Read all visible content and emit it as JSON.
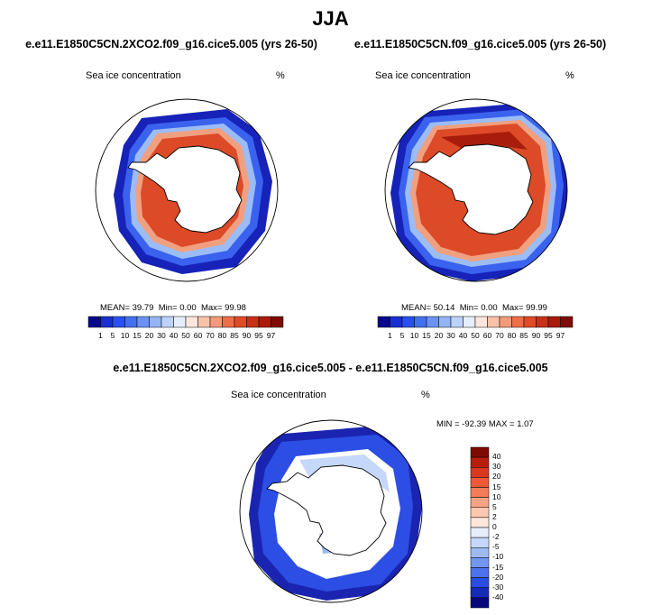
{
  "title": "JJA",
  "panels": [
    {
      "id": "left",
      "title": "e.e11.E1850C5CN.2XCO2.f09_g16.cice5.005 (yrs 26-50)",
      "field_label": "Sea ice concentration",
      "units": "%",
      "stats": {
        "mean_label": "MEAN=",
        "mean": "39.79",
        "min_label": "Min=",
        "min": "0.00",
        "max_label": "Max=",
        "max": "99.98"
      }
    },
    {
      "id": "right",
      "title": "e.e11.E1850C5CN.f09_g16.cice5.005 (yrs 26-50)",
      "field_label": "Sea ice concentration",
      "units": "%",
      "stats": {
        "mean_label": "MEAN=",
        "mean": "50.14",
        "min_label": "Min=",
        "min": "0.00",
        "max_label": "Max=",
        "max": "99.99"
      }
    }
  ],
  "diff_panel": {
    "title": "e.e11.E1850C5CN.2XCO2.f09_g16.cice5.005 - e.e11.E1850C5CN.f09_g16.cice5.005",
    "field_label": "Sea ice concentration",
    "units": "%",
    "minmax_text": "MIN = -92.39 MAX =  1.07"
  },
  "concentration_colorbar": {
    "labels": [
      "1",
      "5",
      "10",
      "15",
      "20",
      "30",
      "40",
      "50",
      "60",
      "70",
      "80",
      "85",
      "90",
      "95",
      "97"
    ],
    "colors": [
      "#08088c",
      "#1a2fd0",
      "#2850ee",
      "#4470f0",
      "#6b92f2",
      "#94b4f5",
      "#bdd2f9",
      "#e6eefc",
      "#fde6dc",
      "#f8c2a8",
      "#f49a78",
      "#ee6e48",
      "#e04a28",
      "#c83018",
      "#a81c0c",
      "#7e0c04"
    ]
  },
  "difference_colorbar": {
    "labels": [
      "40",
      "30",
      "20",
      "15",
      "10",
      "5",
      "2",
      "0",
      "-2",
      "-5",
      "-10",
      "-15",
      "-20",
      "-30",
      "-40"
    ],
    "colors": [
      "#7e0c04",
      "#b81e0e",
      "#d83820",
      "#ee5a38",
      "#f47c58",
      "#f8a284",
      "#fbc8b0",
      "#fde6dc",
      "#e6eefc",
      "#c6d8fa",
      "#9ebaf5",
      "#7496f2",
      "#4c72ee",
      "#2a4ce0",
      "#162ab8",
      "#08087c"
    ]
  }
}
